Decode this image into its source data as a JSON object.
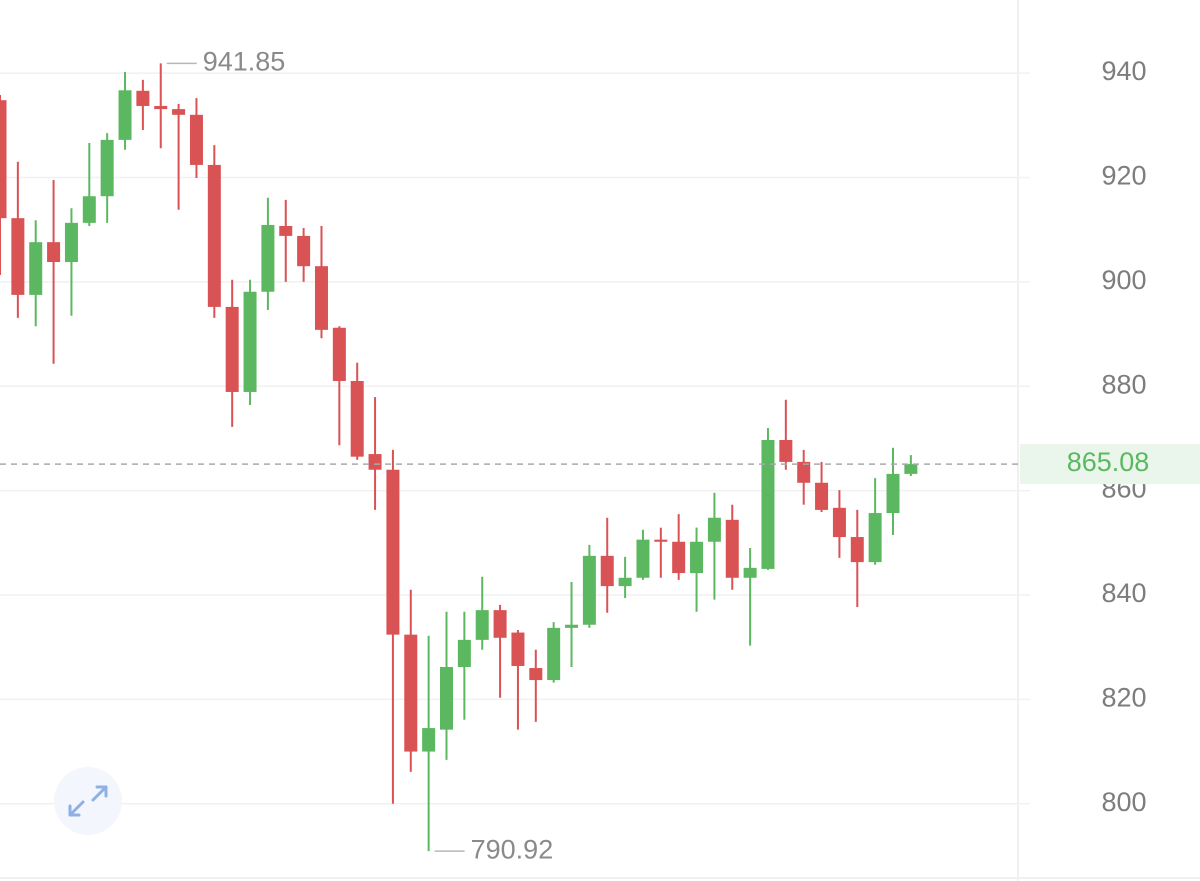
{
  "chart_data": {
    "type": "candlestick",
    "open": [
      934.8,
      912.2,
      897.5,
      907.6,
      903.8,
      911.3,
      916.4,
      927.2,
      936.6,
      933.7,
      933.1,
      932.0,
      922.4,
      895.2,
      878.9,
      898.1,
      910.7,
      908.8,
      903.0,
      891.2,
      881.0,
      867.0,
      864.0,
      832.4,
      810.0,
      814.2,
      826.2,
      831.4,
      837.1,
      832.8,
      826.0,
      823.7,
      833.7,
      834.3,
      847.5,
      841.7,
      843.3,
      850.6,
      850.2,
      844.2,
      850.2,
      854.4,
      843.3,
      845.0,
      869.7,
      865.5,
      861.5,
      856.7,
      851.1,
      846.3,
      855.7,
      863.2
    ],
    "high": [
      935.8,
      923.0,
      911.8,
      919.5,
      914.1,
      926.6,
      928.5,
      940.2,
      938.7,
      941.85,
      934.1,
      935.2,
      926.2,
      900.4,
      900.4,
      916.1,
      915.7,
      910.3,
      910.7,
      891.5,
      884.5,
      877.9,
      867.8,
      841.0,
      832.2,
      836.8,
      836.8,
      843.5,
      838.1,
      833.3,
      829.5,
      834.8,
      842.5,
      849.6,
      854.8,
      847.3,
      852.5,
      852.9,
      855.5,
      852.9,
      859.6,
      857.3,
      849.0,
      872.0,
      877.4,
      867.8,
      865.5,
      860.1,
      856.3,
      862.4,
      868.2,
      866.8
    ],
    "low": [
      901.3,
      893.1,
      891.5,
      884.3,
      893.5,
      910.7,
      911.3,
      925.3,
      929.1,
      925.6,
      913.8,
      919.9,
      893.1,
      872.2,
      876.4,
      894.6,
      900.0,
      900.0,
      889.2,
      868.7,
      865.9,
      856.3,
      800.0,
      806.1,
      790.92,
      808.4,
      816.1,
      829.5,
      820.3,
      814.2,
      815.7,
      823.2,
      826.2,
      833.7,
      836.6,
      839.4,
      842.9,
      843.3,
      842.9,
      836.8,
      839.1,
      841.0,
      830.3,
      844.8,
      864.0,
      857.3,
      855.9,
      847.1,
      837.7,
      845.8,
      851.5,
      862.8
    ],
    "close": [
      912.2,
      897.5,
      907.6,
      903.8,
      911.3,
      916.4,
      927.2,
      936.7,
      933.7,
      933.1,
      932.0,
      922.4,
      895.2,
      878.9,
      898.1,
      910.9,
      908.8,
      903.0,
      890.8,
      881.0,
      866.5,
      864.0,
      832.4,
      810.0,
      814.5,
      826.2,
      831.4,
      837.1,
      831.8,
      826.4,
      823.7,
      833.7,
      834.3,
      847.5,
      841.7,
      843.3,
      850.6,
      850.2,
      844.2,
      850.2,
      854.8,
      843.3,
      845.2,
      869.7,
      865.5,
      861.5,
      856.3,
      851.1,
      846.3,
      855.7,
      863.2,
      865.08
    ],
    "up_color": "#5cb860",
    "down_color": "#d95254",
    "ylim": [
      785.2,
      954.0
    ],
    "yticks": [
      800,
      820,
      840,
      860,
      880,
      900,
      920,
      940
    ],
    "grid": true,
    "high_marker": 941.85,
    "low_marker": 790.92,
    "last_price": 865.08
  }
}
